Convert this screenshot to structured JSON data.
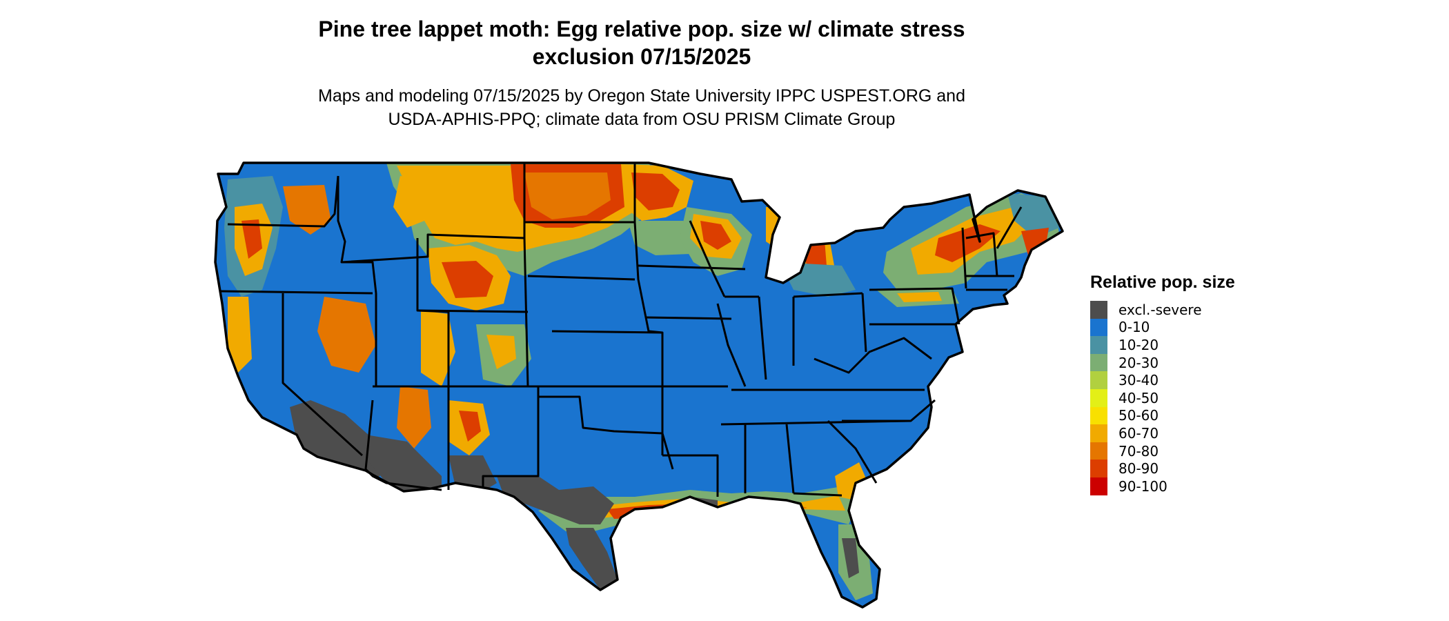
{
  "title": {
    "line1": "Pine tree lappet moth: Egg relative pop. size w/ climate stress",
    "line2": "exclusion 07/15/2025"
  },
  "subtitle": {
    "line1": "Maps and modeling 07/15/2025 by Oregon State University IPPC USPEST.ORG and",
    "line2": "USDA-APHIS-PPQ; climate data from OSU PRISM Climate Group"
  },
  "legend": {
    "title": "Relative pop. size",
    "items": [
      {
        "label": "excl.-severe",
        "color": "#4d4d4d"
      },
      {
        "label": "0-10",
        "color": "#1a74cf"
      },
      {
        "label": "10-20",
        "color": "#4a92a3"
      },
      {
        "label": "20-30",
        "color": "#7cae73"
      },
      {
        "label": "30-40",
        "color": "#b1d03f"
      },
      {
        "label": "40-50",
        "color": "#e3ef17"
      },
      {
        "label": "50-60",
        "color": "#f8e000"
      },
      {
        "label": "60-70",
        "color": "#f1aa00"
      },
      {
        "label": "70-80",
        "color": "#e57600"
      },
      {
        "label": "80-90",
        "color": "#dc3e00"
      },
      {
        "label": "90-100",
        "color": "#cc0000"
      }
    ]
  },
  "map": {
    "region": "contiguous-united-states",
    "base_color": "#1a74cf",
    "border_color": "#000000"
  }
}
